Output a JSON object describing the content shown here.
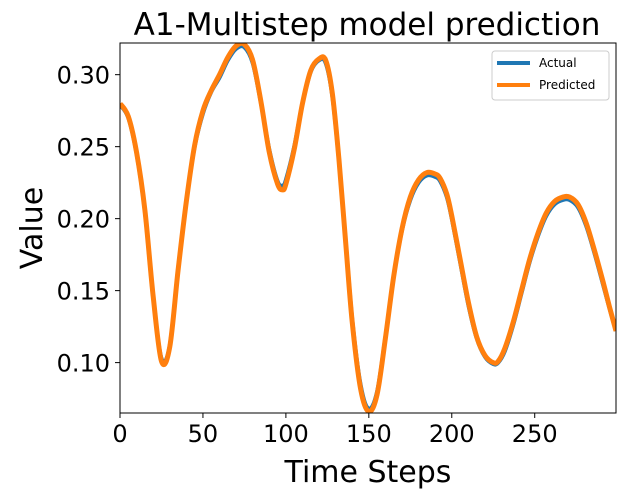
{
  "chart_data": {
    "type": "line",
    "title": "A1-Multistep model prediction",
    "xlabel": "Time Steps",
    "ylabel": "Value",
    "xlim": [
      0,
      299
    ],
    "ylim": [
      0.065,
      0.322
    ],
    "xticks": [
      0,
      50,
      100,
      150,
      200,
      250
    ],
    "yticks": [
      0.1,
      0.15,
      0.2,
      0.25,
      0.3
    ],
    "xtick_labels": [
      "0",
      "50",
      "100",
      "150",
      "200",
      "250"
    ],
    "ytick_labels": [
      "0.10",
      "0.15",
      "0.20",
      "0.25",
      "0.30"
    ],
    "grid": false,
    "legend_position": "top-right",
    "series": [
      {
        "name": "Actual",
        "color": "#1f77b4",
        "x": [
          0,
          5,
          10,
          15,
          20,
          25,
          30,
          35,
          40,
          45,
          50,
          55,
          60,
          65,
          70,
          75,
          80,
          85,
          90,
          95,
          98,
          100,
          105,
          110,
          115,
          120,
          124,
          128,
          132,
          136,
          140,
          145,
          150,
          155,
          160,
          165,
          170,
          175,
          180,
          185,
          190,
          193,
          197,
          200,
          205,
          210,
          215,
          220,
          225,
          228,
          232,
          237,
          242,
          247,
          252,
          257,
          262,
          267,
          271,
          276,
          281,
          286,
          291,
          295,
          299
        ],
        "y": [
          0.279,
          0.27,
          0.245,
          0.205,
          0.145,
          0.103,
          0.112,
          0.165,
          0.212,
          0.25,
          0.273,
          0.288,
          0.298,
          0.31,
          0.318,
          0.319,
          0.308,
          0.28,
          0.248,
          0.226,
          0.223,
          0.227,
          0.25,
          0.28,
          0.302,
          0.31,
          0.308,
          0.285,
          0.24,
          0.185,
          0.13,
          0.085,
          0.068,
          0.08,
          0.118,
          0.16,
          0.192,
          0.213,
          0.225,
          0.23,
          0.229,
          0.226,
          0.215,
          0.2,
          0.17,
          0.14,
          0.117,
          0.104,
          0.099,
          0.1,
          0.108,
          0.126,
          0.148,
          0.17,
          0.188,
          0.202,
          0.21,
          0.213,
          0.213,
          0.208,
          0.195,
          0.176,
          0.155,
          0.138,
          0.122
        ]
      },
      {
        "name": "Predicted",
        "color": "#ff7f0e",
        "x": [
          0,
          5,
          10,
          15,
          20,
          25,
          30,
          35,
          40,
          45,
          50,
          55,
          60,
          65,
          70,
          75,
          80,
          85,
          90,
          95,
          98,
          100,
          105,
          110,
          115,
          120,
          124,
          128,
          132,
          136,
          140,
          145,
          150,
          155,
          160,
          165,
          170,
          175,
          180,
          185,
          190,
          193,
          197,
          200,
          205,
          210,
          215,
          220,
          225,
          228,
          232,
          237,
          242,
          247,
          252,
          257,
          262,
          267,
          271,
          276,
          281,
          286,
          291,
          295,
          299
        ],
        "y": [
          0.28,
          0.271,
          0.246,
          0.206,
          0.146,
          0.101,
          0.111,
          0.164,
          0.212,
          0.251,
          0.275,
          0.289,
          0.3,
          0.312,
          0.32,
          0.321,
          0.31,
          0.281,
          0.246,
          0.224,
          0.22,
          0.224,
          0.248,
          0.28,
          0.303,
          0.311,
          0.31,
          0.287,
          0.241,
          0.184,
          0.128,
          0.082,
          0.066,
          0.078,
          0.117,
          0.16,
          0.193,
          0.215,
          0.227,
          0.232,
          0.231,
          0.228,
          0.217,
          0.202,
          0.172,
          0.142,
          0.118,
          0.105,
          0.1,
          0.101,
          0.11,
          0.128,
          0.15,
          0.172,
          0.19,
          0.204,
          0.212,
          0.215,
          0.215,
          0.21,
          0.197,
          0.178,
          0.157,
          0.139,
          0.122
        ]
      }
    ]
  }
}
